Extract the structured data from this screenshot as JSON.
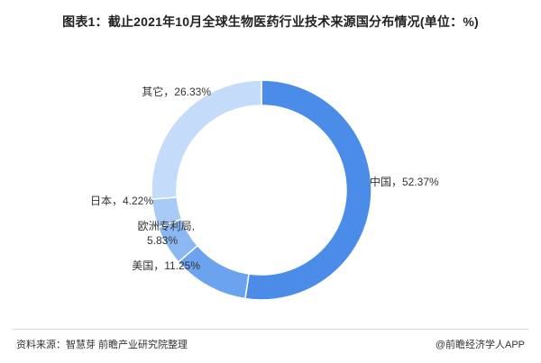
{
  "chart_data": {
    "type": "pie",
    "title": "图表1：截止2021年10月全球生物医药行业技术来源国分布情况(单位：%)",
    "slices": [
      {
        "label": "中国",
        "value": 52.37,
        "display": "中国，52.37%",
        "color": "#4a8ce8"
      },
      {
        "label": "美国",
        "value": 11.25,
        "display": "美国，11.25%",
        "color": "#6ba3ee"
      },
      {
        "label": "欧洲专利局",
        "value": 5.83,
        "display": "欧洲专利局,",
        "display2": "5.83%",
        "color": "#8bb8f2"
      },
      {
        "label": "日本",
        "value": 4.22,
        "display": "日本，4.22%",
        "color": "#a8cbf6"
      },
      {
        "label": "其它",
        "value": 26.33,
        "display": "其它，26.33%",
        "color": "#c4dcf9"
      }
    ],
    "legend": "none",
    "donut": true
  },
  "footer": {
    "source": "资料来源：智慧芽 前瞻产业研究院整理",
    "brand": "@前瞻经济学人APP"
  }
}
